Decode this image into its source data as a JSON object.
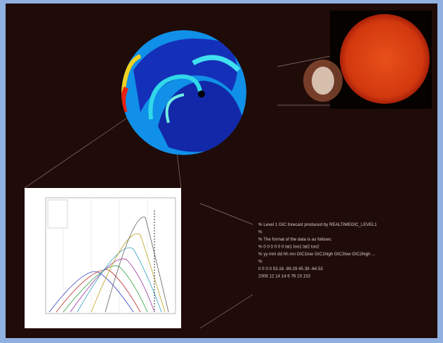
{
  "data_file": {
    "lines": [
      "% Level 1 GIC forecast produced by REALTIMEGIC_LEVEL1",
      "%",
      "% The format of the data is as follows:",
      "%   0   0   0   0   0   0  lat1    lon1    lat2    lon2",
      "% yy  mm  dd  hh  mn  GIC1low  GIC1high  GIC2low  GIC2high  ...",
      "%",
      "  0  0  0  0     53.16   -99.29   45.39   -64.53",
      "2006 12 14 14      6      76      15     153"
    ]
  }
}
